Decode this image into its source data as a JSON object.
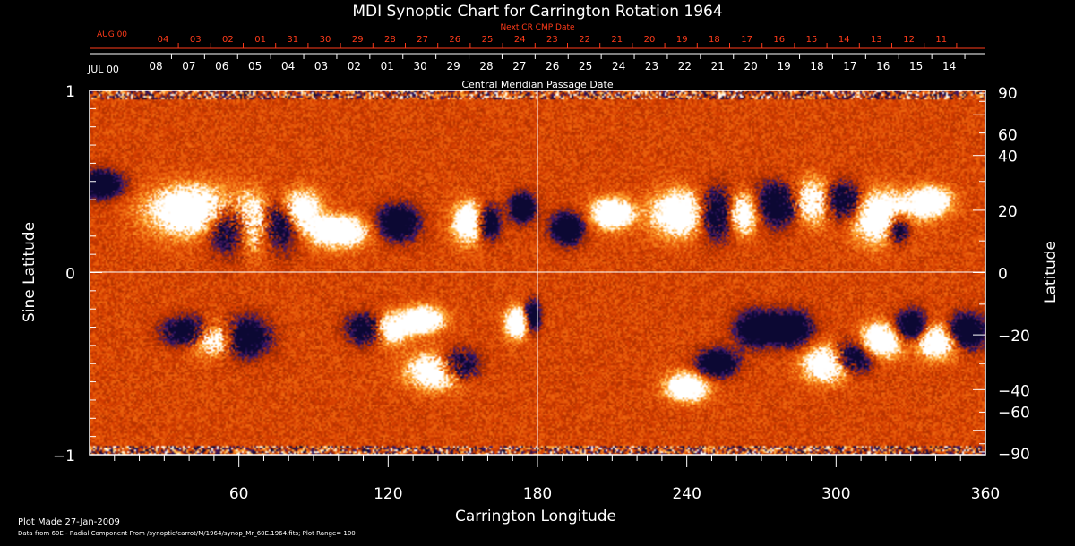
{
  "chart_data": {
    "type": "heatmap",
    "title": "MDI Synoptic Chart for Carrington Rotation 1964",
    "xlabel": "Carrington Longitude",
    "ylabel_left": "Sine Latitude",
    "ylabel_right": "Latitude",
    "xlim": [
      0,
      360
    ],
    "ylim_sine": [
      -1,
      1
    ],
    "x_ticks_major": [
      60,
      120,
      180,
      240,
      300,
      360
    ],
    "x_tick_labels": [
      "60",
      "120",
      "180",
      "240",
      "300",
      "360"
    ],
    "x_minor_step": 10,
    "left_ticks_major": [
      {
        "v": 1,
        "label": "1"
      },
      {
        "v": 0,
        "label": "0"
      },
      {
        "v": -1,
        "label": "−1"
      }
    ],
    "left_minor_step": 0.1,
    "right_ticks": [
      {
        "deg": 90,
        "label": "90"
      },
      {
        "deg": 60,
        "label": "60"
      },
      {
        "deg": 40,
        "label": "40"
      },
      {
        "deg": 20,
        "label": "20"
      },
      {
        "deg": 0,
        "label": "0"
      },
      {
        "deg": -20,
        "label": "−20"
      },
      {
        "deg": -40,
        "label": "−40"
      },
      {
        "deg": -60,
        "label": "−60"
      },
      {
        "deg": -90,
        "label": "−90"
      }
    ],
    "right_minor_step_deg": 10,
    "center_lines": {
      "longitude": 180,
      "sine_latitude": 0
    },
    "colormap": [
      "#0c0833",
      "#3a1870",
      "#9c2a00",
      "#d63d00",
      "#f06a10",
      "#ffb03a",
      "#ffffff"
    ],
    "top_axis_next": {
      "title": "Next CR CMP Date",
      "color": "#ff3b1a",
      "month_label": "AUG 00",
      "days": [
        "04",
        "03",
        "02",
        "01",
        "31",
        "30",
        "29",
        "28",
        "27",
        "26",
        "25",
        "24",
        "23",
        "22",
        "21",
        "20",
        "19",
        "18",
        "17",
        "16",
        "15",
        "14",
        "13",
        "12",
        "11"
      ]
    },
    "top_axis_current": {
      "title": "Central Meridian Passage Date",
      "color": "#ffffff",
      "month_label": "JUL 00",
      "days": [
        "08",
        "07",
        "06",
        "05",
        "04",
        "03",
        "02",
        "01",
        "30",
        "29",
        "28",
        "27",
        "26",
        "25",
        "24",
        "23",
        "22",
        "21",
        "20",
        "19",
        "18",
        "17",
        "16",
        "15",
        "14"
      ]
    },
    "active_regions": [
      {
        "lon": 42,
        "lat": 20,
        "w": 22,
        "h": 10,
        "pol": 1
      },
      {
        "lon": 57,
        "lat": 15,
        "w": 12,
        "h": 10,
        "pol": -1
      },
      {
        "lon": 66,
        "lat": 16,
        "w": 10,
        "h": 11,
        "pol": 1
      },
      {
        "lon": 76,
        "lat": 16,
        "w": 10,
        "h": 10,
        "pol": -1
      },
      {
        "lon": 84,
        "lat": 20,
        "w": 10,
        "h": 8,
        "pol": 1
      },
      {
        "lon": 100,
        "lat": 13,
        "w": 14,
        "h": 6,
        "pol": 1
      },
      {
        "lon": 124,
        "lat": 16,
        "w": 10,
        "h": 7,
        "pol": -1
      },
      {
        "lon": 160,
        "lat": 16,
        "w": 6,
        "h": 7,
        "pol": -1
      },
      {
        "lon": 153,
        "lat": 16,
        "w": 8,
        "h": 8,
        "pol": 1
      },
      {
        "lon": 174,
        "lat": 21,
        "w": 6,
        "h": 6,
        "pol": -1
      },
      {
        "lon": 192,
        "lat": 14,
        "w": 8,
        "h": 6,
        "pol": -1
      },
      {
        "lon": 210,
        "lat": 19,
        "w": 10,
        "h": 6,
        "pol": 1
      },
      {
        "lon": 238,
        "lat": 19,
        "w": 14,
        "h": 9,
        "pol": 1
      },
      {
        "lon": 252,
        "lat": 19,
        "w": 10,
        "h": 10,
        "pol": -1
      },
      {
        "lon": 262,
        "lat": 19,
        "w": 8,
        "h": 8,
        "pol": 1
      },
      {
        "lon": 278,
        "lat": 22,
        "w": 12,
        "h": 9,
        "pol": -1
      },
      {
        "lon": 290,
        "lat": 23,
        "w": 12,
        "h": 9,
        "pol": 1
      },
      {
        "lon": 302,
        "lat": 23,
        "w": 10,
        "h": 8,
        "pol": -1
      },
      {
        "lon": 318,
        "lat": 18,
        "w": 14,
        "h": 10,
        "pol": 1
      },
      {
        "lon": 325,
        "lat": 14,
        "w": 6,
        "h": 6,
        "pol": -1
      },
      {
        "lon": 338,
        "lat": 23,
        "w": 10,
        "h": 6,
        "pol": 1
      },
      {
        "lon": 5,
        "lat": 29,
        "w": 10,
        "h": 6,
        "pol": -1
      },
      {
        "lon": 40,
        "lat": -19,
        "w": 12,
        "h": 6,
        "pol": -1
      },
      {
        "lon": 50,
        "lat": -21,
        "w": 12,
        "h": 7,
        "pol": 1
      },
      {
        "lon": 62,
        "lat": -21,
        "w": 12,
        "h": 8,
        "pol": -1
      },
      {
        "lon": 112,
        "lat": -18,
        "w": 10,
        "h": 6,
        "pol": -1
      },
      {
        "lon": 120,
        "lat": -18,
        "w": 10,
        "h": 6,
        "pol": 1
      },
      {
        "lon": 134,
        "lat": -15,
        "w": 10,
        "h": 5,
        "pol": 1
      },
      {
        "lon": 140,
        "lat": -33,
        "w": 14,
        "h": 8,
        "pol": 1
      },
      {
        "lon": 148,
        "lat": -31,
        "w": 10,
        "h": 7,
        "pol": -1
      },
      {
        "lon": 172,
        "lat": -16,
        "w": 6,
        "h": 6,
        "pol": 1
      },
      {
        "lon": 178,
        "lat": -14,
        "w": 4,
        "h": 6,
        "pol": -1
      },
      {
        "lon": 240,
        "lat": -39,
        "w": 10,
        "h": 7,
        "pol": 1
      },
      {
        "lon": 252,
        "lat": -30,
        "w": 10,
        "h": 6,
        "pol": -1
      },
      {
        "lon": 268,
        "lat": -18,
        "w": 10,
        "h": 7,
        "pol": -1
      },
      {
        "lon": 282,
        "lat": -18,
        "w": 10,
        "h": 7,
        "pol": -1
      },
      {
        "lon": 297,
        "lat": -30,
        "w": 12,
        "h": 8,
        "pol": 1
      },
      {
        "lon": 306,
        "lat": -28,
        "w": 10,
        "h": 7,
        "pol": -1
      },
      {
        "lon": 318,
        "lat": -22,
        "w": 10,
        "h": 7,
        "pol": 1
      },
      {
        "lon": 330,
        "lat": -17,
        "w": 8,
        "h": 6,
        "pol": -1
      },
      {
        "lon": 341,
        "lat": -22,
        "w": 10,
        "h": 7,
        "pol": 1
      },
      {
        "lon": 352,
        "lat": -19,
        "w": 10,
        "h": 7,
        "pol": -1
      }
    ]
  },
  "footer": {
    "plot_made": "Plot Made 27-Jan-2009",
    "data_from": "Data from 60E - Radial Component From /synoptic/carrot/M/1964/synop_Mr_60E.1964.fits; Plot Range= 100"
  }
}
